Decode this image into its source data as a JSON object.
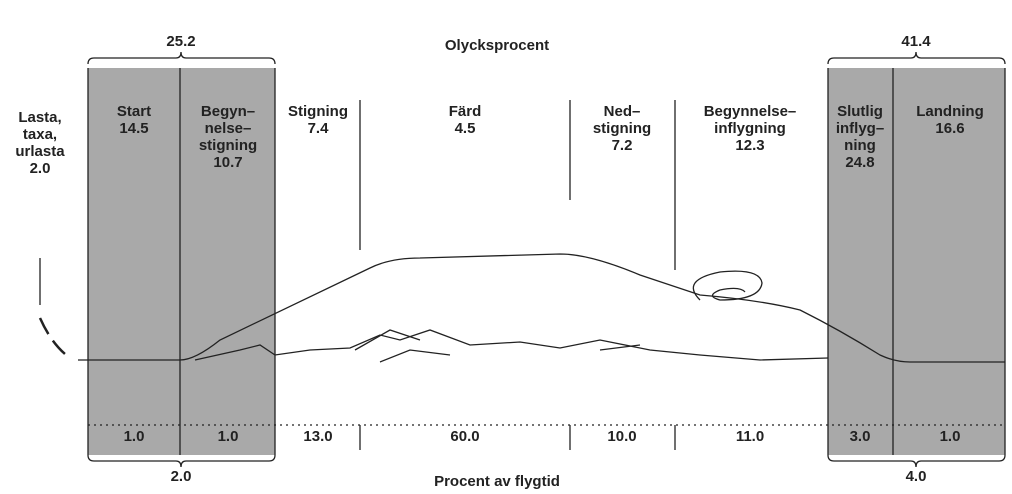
{
  "title": "Olycksprocent",
  "footer": "Procent av flygtid",
  "groups": {
    "top_left": "25.2",
    "top_right": "41.4",
    "bottom_left": "2.0",
    "bottom_right": "4.0"
  },
  "phases": [
    {
      "name_lines": [
        "Lasta,",
        "taxa,",
        "urlasta"
      ],
      "accident": "2.0"
    },
    {
      "name_lines": [
        "Start"
      ],
      "accident": "14.5",
      "flight_time": "1.0"
    },
    {
      "name_lines": [
        "Begyn–",
        "nelse–",
        "stigning"
      ],
      "accident": "10.7",
      "flight_time": "1.0"
    },
    {
      "name_lines": [
        "Stigning"
      ],
      "accident": "7.4",
      "flight_time": "13.0"
    },
    {
      "name_lines": [
        "Färd"
      ],
      "accident": "4.5",
      "flight_time": "60.0"
    },
    {
      "name_lines": [
        "Ned–",
        "stigning"
      ],
      "accident": "7.2",
      "flight_time": "10.0"
    },
    {
      "name_lines": [
        "Begynnelse–",
        "inflygning"
      ],
      "accident": "12.3",
      "flight_time": "11.0"
    },
    {
      "name_lines": [
        "Slutlig",
        "inflyg–",
        "ning"
      ],
      "accident": "24.8",
      "flight_time": "3.0"
    },
    {
      "name_lines": [
        "Landning"
      ],
      "accident": "16.6",
      "flight_time": "1.0"
    }
  ]
}
